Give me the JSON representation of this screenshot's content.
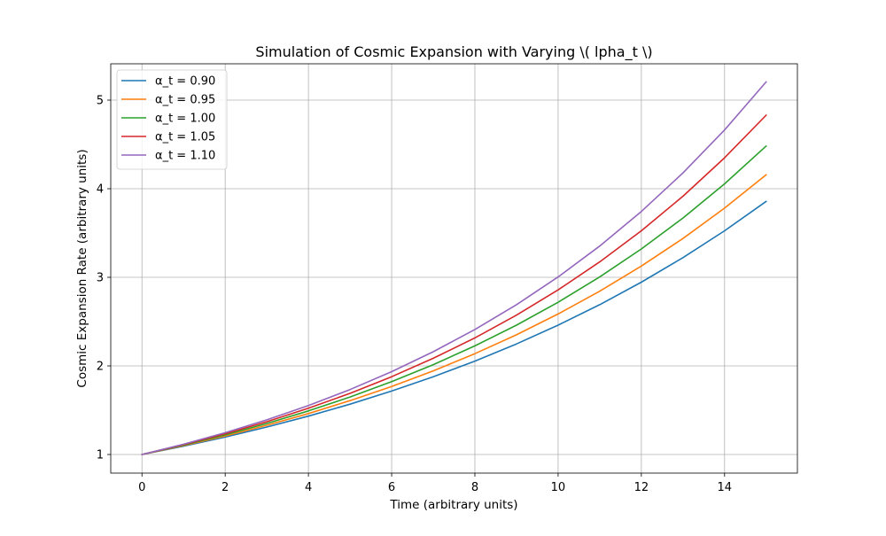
{
  "chart_data": {
    "type": "line",
    "title": "Simulation of Cosmic Expansion with Varying \\( \u0007lpha_t \\)",
    "xlabel": "Time (arbitrary units)",
    "ylabel": "Cosmic Expansion Rate (arbitrary units)",
    "xlim": [
      -0.75,
      15.75
    ],
    "ylim": [
      0.79,
      5.41
    ],
    "xticks": [
      0,
      2,
      4,
      6,
      8,
      10,
      12,
      14
    ],
    "xtick_labels": [
      "0",
      "2",
      "4",
      "6",
      "8",
      "10",
      "12",
      "14"
    ],
    "yticks": [
      1,
      2,
      3,
      4,
      5
    ],
    "ytick_labels": [
      "1",
      "2",
      "3",
      "4",
      "5"
    ],
    "grid": true,
    "legend_position": "top-left",
    "x": [
      0,
      1,
      2,
      3,
      4,
      5,
      6,
      7,
      8,
      9,
      10,
      11,
      12,
      13,
      14,
      15
    ],
    "series": [
      {
        "name": "α_t = 0.90",
        "color": "#1f77b4",
        "values": [
          1.0,
          1.094,
          1.197,
          1.31,
          1.433,
          1.568,
          1.716,
          1.878,
          2.054,
          2.248,
          2.46,
          2.691,
          2.945,
          3.222,
          3.525,
          3.857
        ]
      },
      {
        "name": "α_t = 0.95",
        "color": "#ff7f0e",
        "values": [
          1.0,
          1.1,
          1.209,
          1.33,
          1.462,
          1.608,
          1.768,
          1.944,
          2.138,
          2.351,
          2.586,
          2.843,
          3.127,
          3.438,
          3.781,
          4.158
        ]
      },
      {
        "name": "α_t = 1.00",
        "color": "#2ca02c",
        "values": [
          1.0,
          1.105,
          1.221,
          1.35,
          1.492,
          1.649,
          1.822,
          2.014,
          2.226,
          2.46,
          2.718,
          3.004,
          3.32,
          3.669,
          4.055,
          4.482
        ]
      },
      {
        "name": "α_t = 1.05",
        "color": "#d62728",
        "values": [
          1.0,
          1.111,
          1.234,
          1.37,
          1.522,
          1.69,
          1.878,
          2.086,
          2.316,
          2.573,
          2.858,
          3.174,
          3.525,
          3.915,
          4.349,
          4.83
        ]
      },
      {
        "name": "α_t = 1.10",
        "color": "#9467bd",
        "values": [
          1.0,
          1.116,
          1.246,
          1.391,
          1.553,
          1.733,
          1.935,
          2.16,
          2.411,
          2.691,
          3.004,
          3.353,
          3.743,
          4.178,
          4.663,
          5.206
        ]
      }
    ]
  }
}
